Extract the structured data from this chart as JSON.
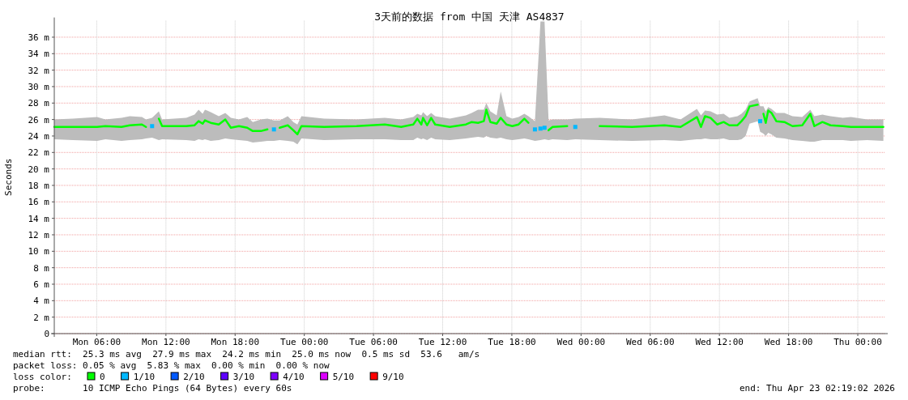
{
  "chart_data": {
    "type": "line",
    "title": "3天前的数据 from 中国 天津 AS4837",
    "ylabel": "Seconds",
    "legend_title": "loss color:",
    "legend": "bottom",
    "grid": true,
    "xlim": [
      "2026-04-20T02:19",
      "2026-04-23T02:19"
    ],
    "ylim": [
      0,
      38
    ],
    "xticks": [
      {
        "value": "2026-04-20T06:00",
        "label": "Mon 06:00"
      },
      {
        "value": "2026-04-20T12:00",
        "label": "Mon 12:00"
      },
      {
        "value": "2026-04-20T18:00",
        "label": "Mon 18:00"
      },
      {
        "value": "2026-04-21T00:00",
        "label": "Tue 00:00"
      },
      {
        "value": "2026-04-21T06:00",
        "label": "Tue 06:00"
      },
      {
        "value": "2026-04-21T12:00",
        "label": "Tue 12:00"
      },
      {
        "value": "2026-04-21T18:00",
        "label": "Tue 18:00"
      },
      {
        "value": "2026-04-22T00:00",
        "label": "Wed 00:00"
      },
      {
        "value": "2026-04-22T06:00",
        "label": "Wed 06:00"
      },
      {
        "value": "2026-04-22T12:00",
        "label": "Wed 12:00"
      },
      {
        "value": "2026-04-22T18:00",
        "label": "Wed 18:00"
      },
      {
        "value": "2026-04-23T00:00",
        "label": "Thu 00:00"
      }
    ],
    "yticks": [
      0,
      {
        "value": 2,
        "label": "2 m"
      },
      {
        "value": 4,
        "label": "4 m"
      },
      {
        "value": 6,
        "label": "6 m"
      },
      {
        "value": 8,
        "label": "8 m"
      },
      {
        "value": 10,
        "label": "10 m"
      },
      {
        "value": 12,
        "label": "12 m"
      },
      {
        "value": 14,
        "label": "14 m"
      },
      {
        "value": 16,
        "label": "16 m"
      },
      {
        "value": 18,
        "label": "18 m"
      },
      {
        "value": 20,
        "label": "20 m"
      },
      {
        "value": 22,
        "label": "22 m"
      },
      {
        "value": 24,
        "label": "24 m"
      },
      {
        "value": 26,
        "label": "26 m"
      },
      {
        "value": 28,
        "label": "28 m"
      },
      {
        "value": 30,
        "label": "30 m"
      },
      {
        "value": 32,
        "label": "32 m"
      },
      {
        "value": 34,
        "label": "34 m"
      },
      {
        "value": 36,
        "label": "36 m"
      }
    ],
    "annotations": [
      "median rtt:  25.3 ms avg  27.9 ms max  24.2 ms min  25.0 ms now  0.5 ms sd  53.6   am/s",
      "packet loss: 0.05 % avg  5.83 % max  0.00 % min  0.00 % now",
      "probe:       10 ICMP Echo Pings (64 Bytes) every 60s",
      "end: Thu Apr 23 02:19:02 2026"
    ],
    "series": [
      {
        "name": "0",
        "color": "#00ff00",
        "x": [
          "2026-04-20T02:19",
          "2026-04-20T03:56",
          "2026-04-20T06:02",
          "2026-04-20T06:45",
          "2026-04-20T08:09",
          "2026-04-20T08:52",
          "2026-04-20T09:55",
          "2026-04-20T10:16",
          "2026-04-20T10:48",
          "2026-04-20T11:23",
          "2026-04-20T11:40",
          "2026-04-20T13:46",
          "2026-04-20T14:29",
          "2026-04-20T14:50",
          "2026-04-20T15:11",
          "2026-04-20T15:23",
          "2026-04-20T15:53",
          "2026-04-20T16:35",
          "2026-04-20T17:09",
          "2026-04-20T17:38",
          "2026-04-20T18:20",
          "2026-04-20T19:03",
          "2026-04-20T19:32",
          "2026-04-20T20:14",
          "2026-04-20T20:48",
          "2026-04-20T21:22",
          "2026-04-20T21:52",
          "2026-04-20T22:34",
          "2026-04-20T23:03",
          "2026-04-20T23:24",
          "2026-04-20T23:45",
          "2026-04-21T01:43",
          "2026-04-21T04:32",
          "2026-04-21T06:59",
          "2026-04-21T08:24",
          "2026-04-21T09:27",
          "2026-04-21T09:48",
          "2026-04-21T10:09",
          "2026-04-21T10:18",
          "2026-04-21T10:39",
          "2026-04-21T11:00",
          "2026-04-21T11:21",
          "2026-04-21T12:37",
          "2026-04-21T14:01",
          "2026-04-21T14:31",
          "2026-04-21T15:04",
          "2026-04-21T15:34",
          "2026-04-21T15:47",
          "2026-04-21T16:08",
          "2026-04-21T16:41",
          "2026-04-21T17:02",
          "2026-04-21T17:32",
          "2026-04-21T18:02",
          "2026-04-21T18:35",
          "2026-04-21T19:05",
          "2026-04-21T19:26",
          "2026-04-21T20:00",
          "2026-04-21T20:29",
          "2026-04-21T20:50",
          "2026-04-21T21:11",
          "2026-04-21T21:32",
          "2026-04-21T22:48",
          "2026-04-21T23:30",
          "2026-04-22T01:37",
          "2026-04-22T04:26",
          "2026-04-22T07:14",
          "2026-04-22T08:38",
          "2026-04-22T10:03",
          "2026-04-22T10:24",
          "2026-04-22T10:45",
          "2026-04-22T11:14",
          "2026-04-22T11:48",
          "2026-04-22T12:22",
          "2026-04-22T12:52",
          "2026-04-22T13:34",
          "2026-04-22T13:55",
          "2026-04-22T14:16",
          "2026-04-22T14:37",
          "2026-04-22T15:19",
          "2026-04-22T15:32",
          "2026-04-22T15:49",
          "2026-04-22T16:01",
          "2026-04-22T16:14",
          "2026-04-22T16:31",
          "2026-04-22T16:56",
          "2026-04-22T17:38",
          "2026-04-22T18:20",
          "2026-04-22T19:11",
          "2026-04-22T19:53",
          "2026-04-22T20:14",
          "2026-04-22T20:56",
          "2026-04-22T21:38",
          "2026-04-22T22:42",
          "2026-04-22T23:24",
          "2026-04-23T00:48",
          "2026-04-23T02:13"
        ],
        "values": [
          25.1,
          25.1,
          25.1,
          25.2,
          25.1,
          25.3,
          25.4,
          25.1,
          null,
          26.1,
          25.2,
          25.2,
          25.3,
          25.8,
          25.5,
          25.9,
          25.6,
          25.4,
          26,
          25,
          25.2,
          25,
          24.6,
          24.6,
          24.8,
          null,
          25,
          25.3,
          24.7,
          24.2,
          25.2,
          25.1,
          25.2,
          25.4,
          25.1,
          25.4,
          26.1,
          25.4,
          26.2,
          25.3,
          26.2,
          25.4,
          25.1,
          25.4,
          25.7,
          25.6,
          25.8,
          27.2,
          25.7,
          25.5,
          26.2,
          25.4,
          25.2,
          25.4,
          26.1,
          25.6,
          null,
          null,
          null,
          24.7,
          25.1,
          25.2,
          null,
          25.2,
          25.1,
          25.3,
          25.1,
          26.3,
          25.1,
          26.4,
          26.2,
          25.4,
          25.7,
          25.3,
          25.3,
          25.8,
          26.4,
          27.6,
          27.8,
          null,
          26.7,
          25.6,
          27.1,
          26.8,
          25.8,
          25.7,
          25.2,
          25.3,
          26.7,
          25.2,
          25.7,
          25.3,
          25.2,
          25.1,
          25.1,
          25.1
        ],
        "lower": [
          23.6,
          23.5,
          23.4,
          23.6,
          23.4,
          23.5,
          23.6,
          23.7,
          23.8,
          23.5,
          23.6,
          23.5,
          23.4,
          23.6,
          23.5,
          23.6,
          23.4,
          23.5,
          23.7,
          23.6,
          23.5,
          23.4,
          23.2,
          23.3,
          23.4,
          23.4,
          23.5,
          23.4,
          23.3,
          23,
          23.7,
          23.5,
          23.6,
          23.6,
          23.5,
          23.5,
          23.8,
          23.6,
          23.7,
          23.5,
          23.8,
          23.6,
          23.5,
          23.7,
          23.8,
          23.9,
          23.8,
          24,
          23.8,
          23.7,
          23.8,
          23.6,
          23.5,
          23.6,
          23.7,
          23.6,
          23.4,
          23.5,
          23.6,
          23.5,
          23.6,
          23.5,
          23.6,
          23.5,
          23.4,
          23.5,
          23.4,
          23.6,
          23.6,
          23.7,
          23.6,
          23.6,
          23.7,
          23.5,
          23.5,
          23.6,
          24,
          25.5,
          25.8,
          24.5,
          24.3,
          24,
          24.4,
          24.2,
          23.8,
          23.7,
          23.5,
          23.4,
          23.3,
          23.3,
          23.5,
          23.5,
          23.5,
          23.4,
          23.5,
          23.4
        ],
        "upper": [
          26,
          26.1,
          26.3,
          26,
          26.2,
          26.4,
          26.3,
          26,
          26.2,
          27,
          26,
          26.2,
          26.6,
          27.2,
          26.7,
          27.2,
          26.9,
          26.4,
          26.8,
          26.2,
          26,
          26.3,
          25.7,
          26,
          26.1,
          25.9,
          25.9,
          26.4,
          25.7,
          25.4,
          26.4,
          26.1,
          26,
          26.2,
          26,
          26.3,
          26.7,
          26.5,
          26.9,
          26.4,
          26.8,
          26.4,
          26.1,
          26.5,
          26.8,
          27.2,
          27.2,
          28,
          27,
          26.5,
          29.4,
          26.4,
          26.1,
          26.3,
          26.7,
          26.4,
          25.8,
          37.9,
          37.9,
          25.9,
          26,
          26,
          26.1,
          26.2,
          26,
          26.5,
          26,
          27.3,
          26.5,
          27.1,
          27,
          26.6,
          26.7,
          26.2,
          26.4,
          26.7,
          27.2,
          28.2,
          28.6,
          27.6,
          27.6,
          27,
          27.5,
          27.3,
          26.8,
          26.8,
          26.4,
          26.3,
          27.2,
          26.4,
          26.6,
          26.4,
          26.2,
          26.3,
          26,
          26
        ]
      },
      {
        "name": "1/10",
        "color": "#00b8ff",
        "type": "scatter",
        "marker": "square",
        "x": [
          "2026-04-20T10:48",
          "2026-04-20T21:22",
          "2026-04-21T20:00",
          "2026-04-21T20:29",
          "2026-04-21T20:50",
          "2026-04-21T23:30",
          "2026-04-22T15:32"
        ],
        "values": [
          25.2,
          24.8,
          24.8,
          24.9,
          25,
          25.1,
          25.8
        ]
      },
      {
        "name": "2/10",
        "color": "#0059ff",
        "type": "scatter",
        "marker": "square"
      },
      {
        "name": "3/10",
        "color": "#5e00ff",
        "type": "scatter",
        "marker": "square"
      },
      {
        "name": "4/10",
        "color": "#7e00ff",
        "type": "scatter",
        "marker": "square"
      },
      {
        "name": "5/10",
        "color": "#dd00ff",
        "type": "scatter",
        "marker": "square"
      },
      {
        "name": "9/10",
        "color": "#ff0000",
        "type": "scatter",
        "marker": "square"
      }
    ]
  }
}
